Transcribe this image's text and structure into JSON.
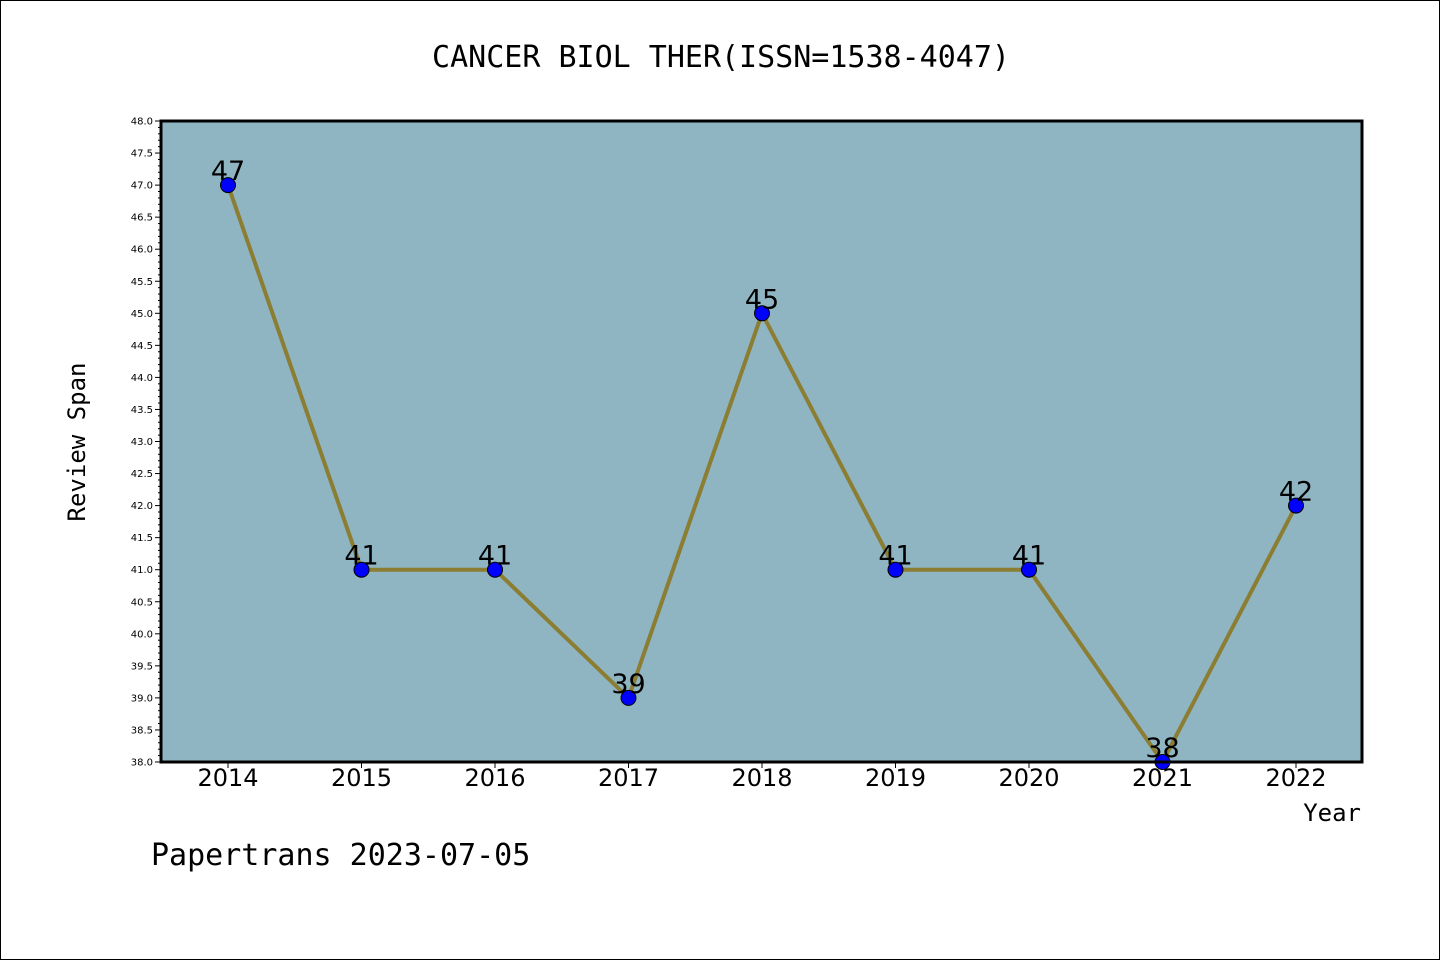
{
  "watermark": "Papertrans 2023-07-05",
  "chart_data": {
    "type": "line",
    "title": "CANCER BIOL THER(ISSN=1538-4047)",
    "xlabel": "Year",
    "ylabel": "Review Span",
    "categories": [
      "2014",
      "2015",
      "2016",
      "2017",
      "2018",
      "2019",
      "2020",
      "2021",
      "2022"
    ],
    "series": [
      {
        "values": [
          47,
          41,
          41,
          39,
          45,
          41,
          41,
          38,
          42
        ]
      }
    ],
    "data_labels": [
      "47",
      "41",
      "41",
      "39",
      "45",
      "41",
      "41",
      "38",
      "42"
    ],
    "ylim": [
      38.0,
      48.0
    ],
    "y_ticks": [
      "38.0",
      "38.5",
      "39.0",
      "39.5",
      "40.0",
      "40.5",
      "41.0",
      "41.5",
      "42.0",
      "42.5",
      "43.0",
      "43.5",
      "44.0",
      "44.5",
      "45.0",
      "45.5",
      "46.0",
      "46.5",
      "47.0",
      "47.5",
      "48.0"
    ],
    "grid": false,
    "colors": {
      "plot_background": "#8fb5c3",
      "line": "#8b7d32",
      "marker": "#0000ff"
    }
  }
}
